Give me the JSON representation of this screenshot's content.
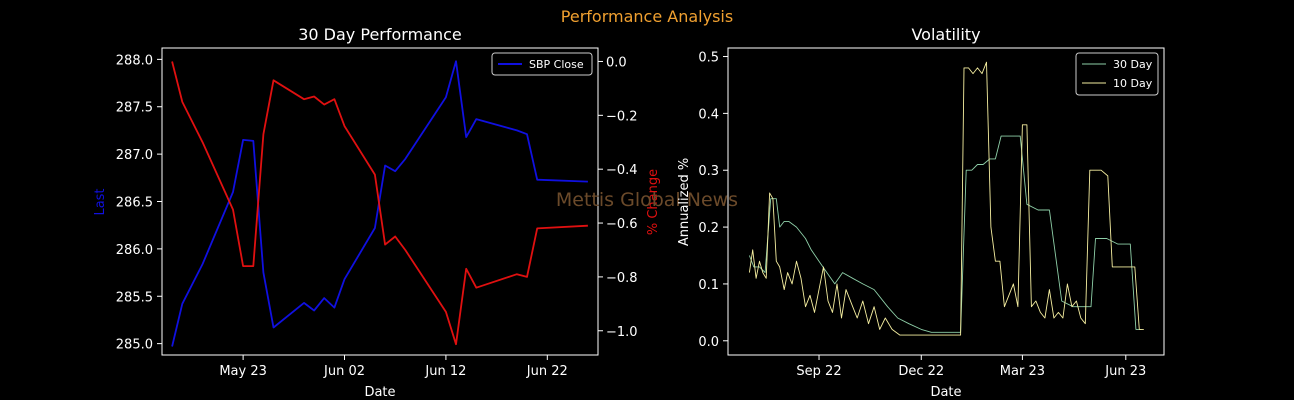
{
  "figure": {
    "suptitle": "Performance Analysis",
    "suptitle_color": "#f0a030",
    "watermark": "Mettis Global News",
    "watermark_color": "#6b4a2a",
    "background": "#000000",
    "foreground": "#ffffff"
  },
  "chart_data": [
    {
      "type": "line",
      "title": "30 Day Performance",
      "xlabel": "Date",
      "ylabel": "Last",
      "ylabel_color": "#1010e0",
      "y2label": "% Change",
      "y2label_color": "#e01010",
      "legend_position": "top-right",
      "x_ticks": [
        "May 23",
        "Jun 02",
        "Jun 12",
        "Jun 22"
      ],
      "ylim": [
        284.88,
        288.12
      ],
      "y_ticks": [
        "285.0",
        "285.5",
        "286.0",
        "286.5",
        "287.0",
        "287.5",
        "288.0"
      ],
      "y2lim": [
        -1.09,
        0.05
      ],
      "y2_ticks": [
        "0.0",
        "−0.2",
        "−0.4",
        "−0.6",
        "−0.8",
        "−1.0"
      ],
      "series": [
        {
          "name": "SBP Close",
          "color": "#1010e0",
          "axis": "left",
          "x": [
            "2023-05-16",
            "2023-05-17",
            "2023-05-19",
            "2023-05-22",
            "2023-05-23",
            "2023-05-24",
            "2023-05-25",
            "2023-05-26",
            "2023-05-29",
            "2023-05-30",
            "2023-05-31",
            "2023-06-01",
            "2023-06-02",
            "2023-06-05",
            "2023-06-06",
            "2023-06-07",
            "2023-06-08",
            "2023-06-12",
            "2023-06-13",
            "2023-06-14",
            "2023-06-15",
            "2023-06-19",
            "2023-06-20",
            "2023-06-21",
            "2023-06-26"
          ],
          "values": [
            284.97,
            285.42,
            285.84,
            286.6,
            287.15,
            287.14,
            285.75,
            285.17,
            285.43,
            285.35,
            285.48,
            285.38,
            285.68,
            286.22,
            286.88,
            286.82,
            286.95,
            287.6,
            287.98,
            287.18,
            287.37,
            287.25,
            287.21,
            286.73,
            286.71
          ]
        },
        {
          "name": "",
          "color": "#e01010",
          "axis": "right",
          "x": [
            "2023-05-16",
            "2023-05-17",
            "2023-05-19",
            "2023-05-22",
            "2023-05-23",
            "2023-05-24",
            "2023-05-25",
            "2023-05-26",
            "2023-05-29",
            "2023-05-30",
            "2023-05-31",
            "2023-06-01",
            "2023-06-02",
            "2023-06-05",
            "2023-06-06",
            "2023-06-07",
            "2023-06-08",
            "2023-06-12",
            "2023-06-13",
            "2023-06-14",
            "2023-06-15",
            "2023-06-19",
            "2023-06-20",
            "2023-06-21",
            "2023-06-26"
          ],
          "values": [
            0.0,
            -0.15,
            -0.3,
            -0.55,
            -0.76,
            -0.76,
            -0.27,
            -0.07,
            -0.14,
            -0.13,
            -0.16,
            -0.14,
            -0.24,
            -0.42,
            -0.68,
            -0.65,
            -0.7,
            -0.93,
            -1.05,
            -0.77,
            -0.84,
            -0.79,
            -0.8,
            -0.62,
            -0.61
          ]
        }
      ]
    },
    {
      "type": "line",
      "title": "Volatility",
      "xlabel": "Date",
      "ylabel": "Annualized %",
      "legend_position": "top-right",
      "x_ticks": [
        "Sep 22",
        "Dec 22",
        "Mar 23",
        "Jun 23"
      ],
      "ylim": [
        -0.025,
        0.515
      ],
      "y_ticks": [
        "0.0",
        "0.1",
        "0.2",
        "0.3",
        "0.4",
        "0.5"
      ],
      "series": [
        {
          "name": "30 Day",
          "color": "#8ecfa8",
          "x": [
            "2022-07-01",
            "2022-07-05",
            "2022-07-10",
            "2022-07-15",
            "2022-07-20",
            "2022-07-25",
            "2022-07-28",
            "2022-08-01",
            "2022-08-05",
            "2022-08-12",
            "2022-08-20",
            "2022-08-25",
            "2022-09-01",
            "2022-09-08",
            "2022-09-15",
            "2022-09-22",
            "2022-10-01",
            "2022-10-10",
            "2022-10-20",
            "2022-11-01",
            "2022-11-10",
            "2022-11-20",
            "2022-12-01",
            "2022-12-10",
            "2022-12-20",
            "2022-12-30",
            "2023-01-05",
            "2023-01-10",
            "2023-01-15",
            "2023-01-20",
            "2023-01-25",
            "2023-01-31",
            "2023-02-05",
            "2023-02-10",
            "2023-02-15",
            "2023-02-22",
            "2023-02-27",
            "2023-03-05",
            "2023-03-15",
            "2023-03-25",
            "2023-04-05",
            "2023-04-15",
            "2023-04-25",
            "2023-05-01",
            "2023-05-05",
            "2023-05-15",
            "2023-05-25",
            "2023-06-05",
            "2023-06-10",
            "2023-06-15"
          ],
          "values": [
            0.15,
            0.13,
            0.13,
            0.12,
            0.25,
            0.25,
            0.2,
            0.21,
            0.21,
            0.2,
            0.18,
            0.16,
            0.14,
            0.12,
            0.1,
            0.12,
            0.11,
            0.1,
            0.09,
            0.06,
            0.04,
            0.03,
            0.02,
            0.015,
            0.015,
            0.015,
            0.015,
            0.3,
            0.3,
            0.31,
            0.31,
            0.32,
            0.32,
            0.36,
            0.36,
            0.36,
            0.36,
            0.24,
            0.23,
            0.23,
            0.07,
            0.06,
            0.06,
            0.06,
            0.18,
            0.18,
            0.17,
            0.17,
            0.02,
            0.02
          ]
        },
        {
          "name": "10 Day",
          "color": "#f5eea0",
          "x": [
            "2022-07-01",
            "2022-07-04",
            "2022-07-07",
            "2022-07-10",
            "2022-07-13",
            "2022-07-16",
            "2022-07-19",
            "2022-07-22",
            "2022-07-25",
            "2022-07-28",
            "2022-08-01",
            "2022-08-04",
            "2022-08-08",
            "2022-08-12",
            "2022-08-16",
            "2022-08-20",
            "2022-08-24",
            "2022-08-28",
            "2022-09-01",
            "2022-09-05",
            "2022-09-09",
            "2022-09-13",
            "2022-09-17",
            "2022-09-21",
            "2022-09-25",
            "2022-10-01",
            "2022-10-05",
            "2022-10-10",
            "2022-10-15",
            "2022-10-20",
            "2022-10-25",
            "2022-10-30",
            "2022-11-05",
            "2022-11-12",
            "2022-11-20",
            "2022-11-28",
            "2022-12-05",
            "2022-12-15",
            "2022-12-25",
            "2023-01-05",
            "2023-01-08",
            "2023-01-12",
            "2023-01-16",
            "2023-01-20",
            "2023-01-24",
            "2023-01-28",
            "2023-02-01",
            "2023-02-05",
            "2023-02-09",
            "2023-02-13",
            "2023-02-17",
            "2023-02-21",
            "2023-02-25",
            "2023-03-01",
            "2023-03-05",
            "2023-03-09",
            "2023-03-13",
            "2023-03-17",
            "2023-03-21",
            "2023-03-25",
            "2023-03-29",
            "2023-04-02",
            "2023-04-06",
            "2023-04-10",
            "2023-04-14",
            "2023-04-18",
            "2023-04-22",
            "2023-04-26",
            "2023-04-30",
            "2023-05-04",
            "2023-05-10",
            "2023-05-16",
            "2023-05-20",
            "2023-05-24",
            "2023-05-28",
            "2023-06-01",
            "2023-06-05",
            "2023-06-09",
            "2023-06-13",
            "2023-06-17"
          ],
          "values": [
            0.12,
            0.16,
            0.11,
            0.14,
            0.12,
            0.11,
            0.26,
            0.25,
            0.14,
            0.13,
            0.09,
            0.12,
            0.1,
            0.14,
            0.11,
            0.06,
            0.08,
            0.05,
            0.09,
            0.13,
            0.07,
            0.05,
            0.1,
            0.04,
            0.09,
            0.06,
            0.04,
            0.07,
            0.03,
            0.06,
            0.02,
            0.04,
            0.02,
            0.01,
            0.01,
            0.01,
            0.01,
            0.01,
            0.01,
            0.01,
            0.48,
            0.48,
            0.47,
            0.48,
            0.47,
            0.49,
            0.2,
            0.14,
            0.14,
            0.06,
            0.08,
            0.1,
            0.06,
            0.38,
            0.38,
            0.06,
            0.07,
            0.05,
            0.04,
            0.09,
            0.04,
            0.05,
            0.04,
            0.1,
            0.06,
            0.07,
            0.04,
            0.03,
            0.3,
            0.3,
            0.3,
            0.29,
            0.13,
            0.13,
            0.13,
            0.13,
            0.13,
            0.13,
            0.02,
            0.02
          ]
        }
      ]
    }
  ]
}
